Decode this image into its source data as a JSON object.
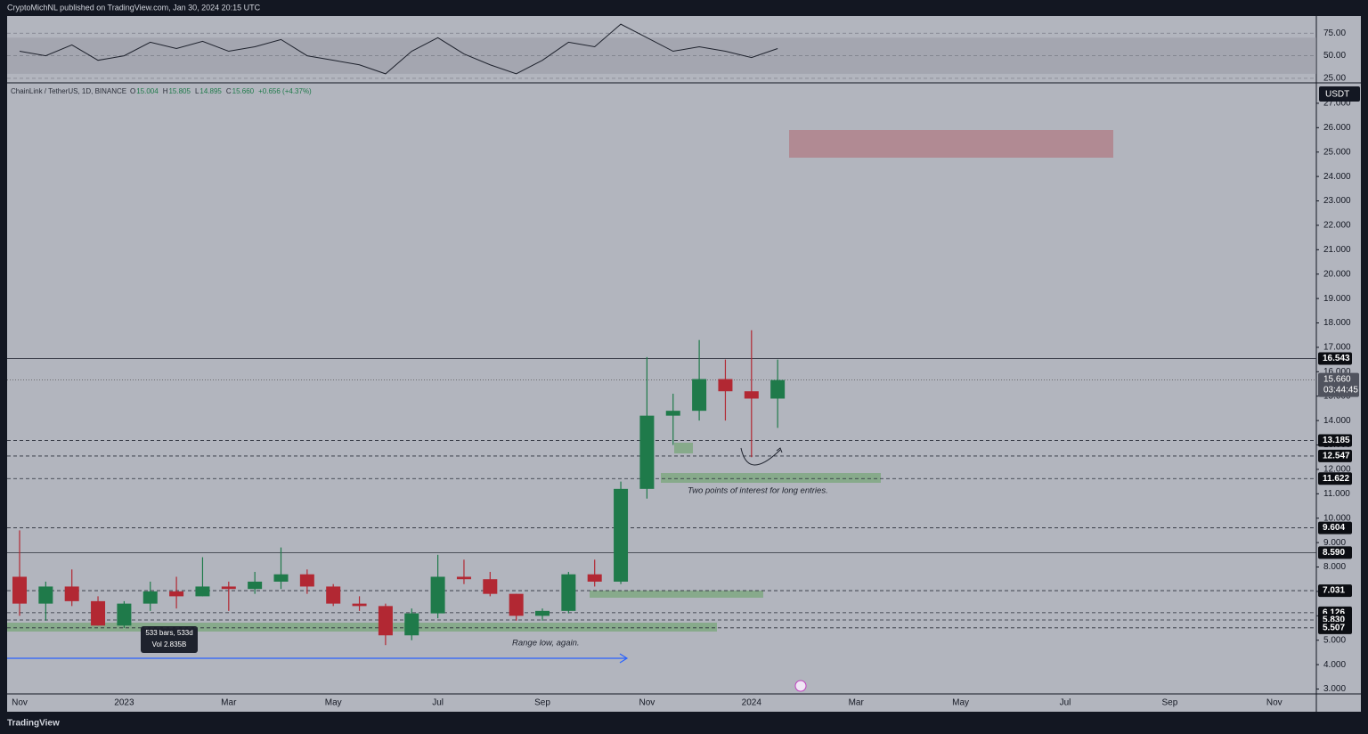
{
  "header": {
    "publisher": "CryptoMichNL published on TradingView.com, Jan 30, 2024 20:15 UTC",
    "symbol": "ChainLink / TetherUS, 1D, BINANCE",
    "ohlc": [
      {
        "key": "O",
        "value": "15.004"
      },
      {
        "key": "H",
        "value": "15.805"
      },
      {
        "key": "L",
        "value": "14.895"
      },
      {
        "key": "C",
        "value": "15.660"
      }
    ],
    "change": "+0.656 (+4.37%)",
    "currency": "USDT"
  },
  "annotations": {
    "entries": "Two points of interest for long entries.",
    "range_low": "Range low, again.",
    "bars": "533 bars, 533d",
    "volume": "Vol 2.835B"
  },
  "footer": {
    "brand": "TradingView"
  },
  "chart_data": [
    {
      "type": "line",
      "name": "RSI",
      "color": "#1e222d",
      "values": [
        55,
        50,
        62,
        45,
        50,
        65,
        58,
        66,
        55,
        60,
        68,
        50,
        45,
        40,
        30,
        55,
        70,
        52,
        40,
        30,
        45,
        65,
        60,
        85,
        70,
        55,
        60,
        55,
        48,
        58,
        null,
        null,
        null,
        null,
        null,
        null,
        null,
        null,
        null,
        null,
        null,
        null,
        null,
        null,
        null,
        null,
        null,
        null,
        null,
        null
      ],
      "ylim": [
        21,
        94
      ],
      "yticks": [
        {
          "value": 25,
          "label": "25.00"
        },
        {
          "value": 50,
          "label": "50.00"
        },
        {
          "value": 75,
          "label": "75.00"
        }
      ]
    },
    {
      "type": "candlestick",
      "up_color": "#1f7a4a",
      "down_color": "#b22833",
      "categories": [
        "Nov",
        null,
        null,
        null,
        "2023",
        null,
        null,
        null,
        "Mar",
        null,
        null,
        null,
        "May",
        null,
        null,
        null,
        "Jul",
        null,
        null,
        null,
        "Sep",
        null,
        null,
        null,
        "Nov",
        null,
        null,
        null,
        "2024",
        null,
        null,
        null,
        "Mar",
        null,
        null,
        null,
        "May",
        null,
        null,
        null,
        "Jul",
        null,
        null,
        null,
        "Sep",
        null,
        null,
        null,
        "Nov",
        null
      ],
      "open": [
        7.6,
        6.5,
        7.2,
        6.6,
        5.6,
        6.5,
        7.0,
        6.8,
        7.2,
        7.1,
        7.4,
        7.7,
        7.2,
        6.5,
        6.4,
        5.2,
        6.1,
        7.6,
        7.5,
        6.9,
        6.0,
        6.2,
        7.7,
        7.4,
        11.2,
        14.2,
        14.4,
        15.7,
        15.2,
        14.9,
        null,
        null,
        null,
        null,
        null,
        null,
        null,
        null,
        null,
        null,
        null,
        null,
        null,
        null,
        null,
        null,
        null,
        null,
        null,
        null
      ],
      "high": [
        9.5,
        7.4,
        7.9,
        6.8,
        6.6,
        7.4,
        7.6,
        8.4,
        7.4,
        7.8,
        8.8,
        7.9,
        7.3,
        6.8,
        6.5,
        6.3,
        8.5,
        8.3,
        7.8,
        6.9,
        6.3,
        7.8,
        8.3,
        11.5,
        16.6,
        15.1,
        17.3,
        16.5,
        17.7,
        16.5,
        null,
        null,
        null,
        null,
        null,
        null,
        null,
        null,
        null,
        null,
        null,
        null,
        null,
        null,
        null,
        null,
        null,
        null,
        null,
        null
      ],
      "low": [
        6.0,
        5.8,
        6.4,
        5.6,
        5.5,
        6.2,
        6.3,
        6.8,
        6.2,
        6.9,
        7.1,
        6.9,
        6.4,
        6.2,
        4.8,
        5.0,
        5.9,
        7.3,
        6.8,
        5.8,
        5.8,
        6.1,
        7.2,
        7.3,
        10.8,
        13.0,
        14.0,
        14.0,
        12.5,
        13.7,
        null,
        null,
        null,
        null,
        null,
        null,
        null,
        null,
        null,
        null,
        null,
        null,
        null,
        null,
        null,
        null,
        null,
        null,
        null,
        null
      ],
      "close": [
        6.5,
        7.2,
        6.6,
        5.6,
        6.5,
        7.0,
        6.8,
        7.2,
        7.1,
        7.4,
        7.7,
        7.2,
        6.5,
        6.4,
        5.2,
        6.1,
        7.6,
        7.5,
        6.9,
        6.0,
        6.2,
        7.7,
        7.4,
        11.2,
        14.2,
        14.4,
        15.7,
        15.2,
        14.9,
        15.66,
        null,
        null,
        null,
        null,
        null,
        null,
        null,
        null,
        null,
        null,
        null,
        null,
        null,
        null,
        null,
        null,
        null,
        null,
        null,
        null
      ],
      "ylim": [
        2.8,
        27.8
      ],
      "yticks": [
        {
          "value": 3,
          "label": "3.000"
        },
        {
          "value": 4,
          "label": "4.000"
        },
        {
          "value": 5,
          "label": "5.000"
        },
        {
          "value": 6,
          "label": "6.000"
        },
        {
          "value": 7,
          "label": "7.000"
        },
        {
          "value": 8,
          "label": "8.000"
        },
        {
          "value": 9,
          "label": "9.000"
        },
        {
          "value": 10,
          "label": "10.000"
        },
        {
          "value": 11,
          "label": "11.000"
        },
        {
          "value": 12,
          "label": "12.000"
        },
        {
          "value": 13,
          "label": "13.000"
        },
        {
          "value": 14,
          "label": "14.000"
        },
        {
          "value": 15,
          "label": "15.000"
        },
        {
          "value": 16,
          "label": "16.000"
        },
        {
          "value": 17,
          "label": "17.000"
        },
        {
          "value": 18,
          "label": "18.000"
        },
        {
          "value": 19,
          "label": "19.000"
        },
        {
          "value": 20,
          "label": "20.000"
        },
        {
          "value": 21,
          "label": "21.000"
        },
        {
          "value": 22,
          "label": "22.000"
        },
        {
          "value": 23,
          "label": "23.000"
        },
        {
          "value": 24,
          "label": "24.000"
        },
        {
          "value": 25,
          "label": "25.000"
        },
        {
          "value": 26,
          "label": "26.000"
        },
        {
          "value": 27,
          "label": "27.000"
        }
      ],
      "levels": [
        {
          "value": 16.543,
          "label": "16.543",
          "style": "solid"
        },
        {
          "value": 13.185,
          "label": "13.185",
          "style": "dashed"
        },
        {
          "value": 12.547,
          "label": "12.547",
          "style": "dashed"
        },
        {
          "value": 11.622,
          "label": "11.622",
          "style": "dashed"
        },
        {
          "value": 9.604,
          "label": "9.604",
          "style": "dashed"
        },
        {
          "value": 8.59,
          "label": "8.590",
          "style": "solid"
        },
        {
          "value": 7.031,
          "label": "7.031",
          "style": "dashed"
        },
        {
          "value": 6.126,
          "label": "6.126",
          "style": "dashed"
        },
        {
          "value": 5.83,
          "label": "5.830",
          "style": "dashed"
        },
        {
          "value": 5.507,
          "label": "5.507",
          "style": "dashed"
        }
      ],
      "last_price": {
        "value": 15.66,
        "label": "15.660",
        "countdown": "03:44:45"
      },
      "grid": false
    }
  ]
}
